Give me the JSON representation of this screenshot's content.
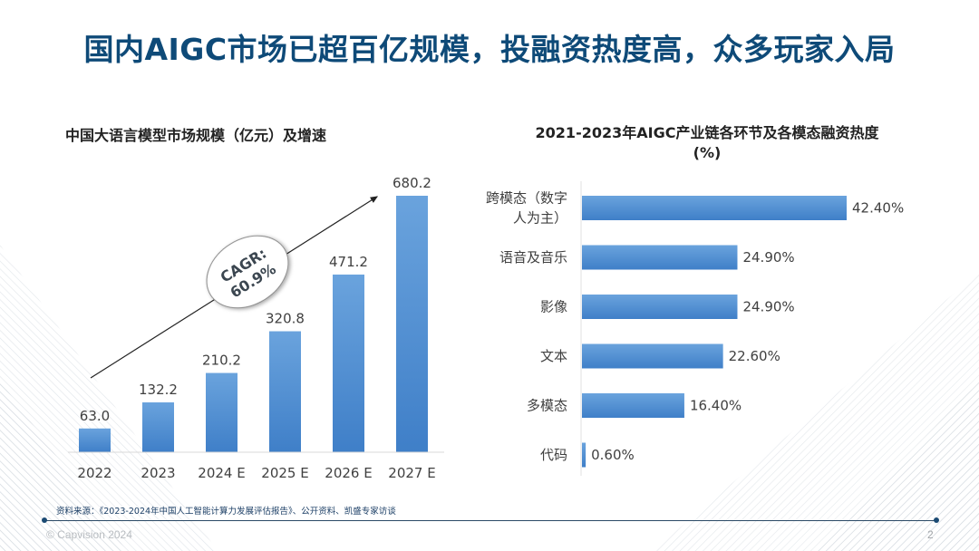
{
  "page": {
    "title": "国内AIGC市场已超百亿规模，投融资热度高，众多玩家入局",
    "source": "资料来源：《2023-2024年中国人工智能计算力发展评估报告》、公开资料、凯盛专家访谈",
    "copyright": "© Capvision 2024",
    "page_number": "2"
  },
  "colors": {
    "title": "#0e4a78",
    "bar": "#4a8ad4",
    "footer_line": "#2b4a66"
  },
  "chart_data": [
    {
      "type": "bar",
      "title": "中国大语言模型市场规模（亿元）及增速",
      "categories": [
        "2022",
        "2023",
        "2024 E",
        "2025 E",
        "2026 E",
        "2027 E"
      ],
      "values": [
        63.0,
        132.2,
        210.2,
        320.8,
        471.2,
        680.2
      ],
      "value_labels": [
        "63.0",
        "132.2",
        "210.2",
        "320.8",
        "471.2",
        "680.2"
      ],
      "xlabel": "",
      "ylabel": "",
      "ylim": [
        0,
        700
      ],
      "grid": false,
      "annotation": {
        "label_line1": "CAGR:",
        "label_line2": "60.9%",
        "arrow": "rising trend arrow from 2022 to 2027 E"
      }
    },
    {
      "type": "bar",
      "orientation": "horizontal",
      "title": "2021-2023年AIGC产业链各环节及各模态融资热度",
      "title_line2": "(%)",
      "categories": [
        "跨模态（数字人为主）",
        "语音及音乐",
        "影像",
        "文本",
        "多模态",
        "代码"
      ],
      "category_lines": [
        [
          "跨模态（数字",
          "人为主）"
        ],
        [
          "语音及音乐"
        ],
        [
          "影像"
        ],
        [
          "文本"
        ],
        [
          "多模态"
        ],
        [
          "代码"
        ]
      ],
      "values": [
        42.4,
        24.9,
        24.9,
        22.6,
        16.4,
        0.6
      ],
      "value_labels": [
        "42.40%",
        "24.90%",
        "24.90%",
        "22.60%",
        "16.40%",
        "0.60%"
      ],
      "xlim": [
        0,
        42.4
      ],
      "grid": false
    }
  ]
}
